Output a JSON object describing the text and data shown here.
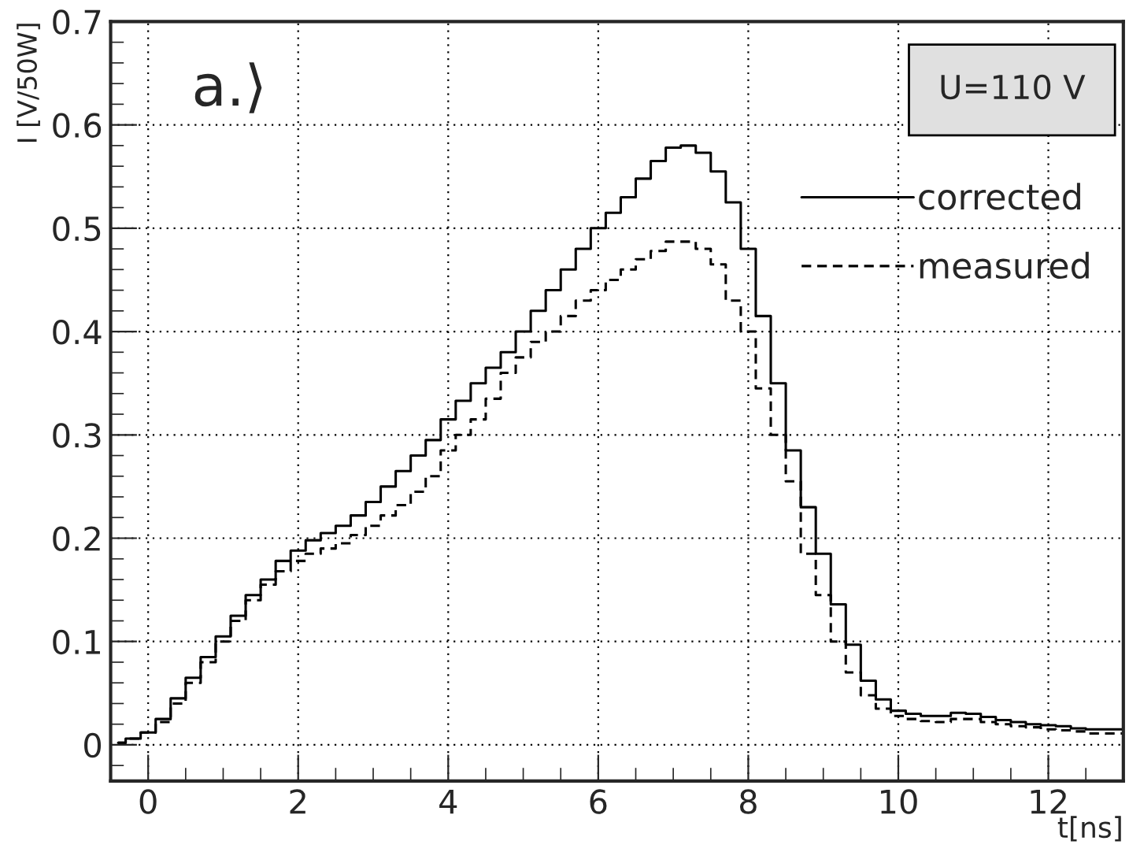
{
  "chart_data": {
    "type": "step",
    "xlabel": "t[ns]",
    "ylabel": "I [V/50W]",
    "x": [
      -0.4,
      -0.2,
      0.0,
      0.2,
      0.4,
      0.6,
      0.8,
      1.0,
      1.2,
      1.4,
      1.6,
      1.8,
      2.0,
      2.2,
      2.4,
      2.6,
      2.8,
      3.0,
      3.2,
      3.4,
      3.6,
      3.8,
      4.0,
      4.2,
      4.4,
      4.6,
      4.8,
      5.0,
      5.2,
      5.4,
      5.6,
      5.8,
      6.0,
      6.2,
      6.4,
      6.6,
      6.8,
      7.0,
      7.2,
      7.4,
      7.6,
      7.8,
      8.0,
      8.2,
      8.4,
      8.6,
      8.8,
      9.0,
      9.2,
      9.4,
      9.6,
      9.8,
      10.0,
      10.2,
      10.4,
      10.6,
      10.8,
      11.0,
      11.2,
      11.4,
      11.6,
      11.8,
      12.0,
      12.2,
      12.4,
      12.6,
      12.8,
      13.0
    ],
    "series": [
      {
        "name": "corrected",
        "color": "#000000",
        "line_style": "solid",
        "values": [
          0.002,
          0.006,
          0.012,
          0.025,
          0.045,
          0.065,
          0.085,
          0.105,
          0.125,
          0.145,
          0.16,
          0.178,
          0.188,
          0.198,
          0.205,
          0.212,
          0.222,
          0.235,
          0.25,
          0.265,
          0.28,
          0.295,
          0.315,
          0.333,
          0.35,
          0.365,
          0.38,
          0.4,
          0.42,
          0.44,
          0.46,
          0.48,
          0.5,
          0.515,
          0.53,
          0.548,
          0.565,
          0.578,
          0.58,
          0.573,
          0.555,
          0.525,
          0.48,
          0.415,
          0.35,
          0.285,
          0.23,
          0.185,
          0.136,
          0.097,
          0.062,
          0.044,
          0.033,
          0.03,
          0.028,
          0.028,
          0.031,
          0.03,
          0.027,
          0.024,
          0.022,
          0.02,
          0.019,
          0.018,
          0.016,
          0.015,
          0.015,
          0.015
        ]
      },
      {
        "name": "measured",
        "color": "#000000",
        "line_style": "dashed",
        "values": [
          0.002,
          0.006,
          0.012,
          0.022,
          0.04,
          0.06,
          0.08,
          0.1,
          0.12,
          0.14,
          0.155,
          0.168,
          0.178,
          0.185,
          0.19,
          0.195,
          0.203,
          0.212,
          0.222,
          0.232,
          0.245,
          0.26,
          0.285,
          0.3,
          0.315,
          0.335,
          0.36,
          0.375,
          0.39,
          0.4,
          0.415,
          0.43,
          0.44,
          0.45,
          0.46,
          0.47,
          0.478,
          0.487,
          0.487,
          0.48,
          0.465,
          0.43,
          0.4,
          0.345,
          0.3,
          0.255,
          0.185,
          0.145,
          0.1,
          0.07,
          0.048,
          0.035,
          0.028,
          0.025,
          0.023,
          0.022,
          0.025,
          0.025,
          0.022,
          0.02,
          0.018,
          0.017,
          0.015,
          0.014,
          0.013,
          0.011,
          0.011,
          0.011
        ]
      }
    ],
    "xlim": [
      -0.5,
      13
    ],
    "ylim": [
      -0.035,
      0.7
    ],
    "xticks": [
      0,
      2,
      4,
      6,
      8,
      10,
      12
    ],
    "yticks": [
      0,
      0.1,
      0.2,
      0.3,
      0.4,
      0.5,
      0.6,
      0.7
    ],
    "grid": true,
    "legend": "right",
    "annotations": [
      "a.⟩",
      "U=110 V"
    ]
  }
}
